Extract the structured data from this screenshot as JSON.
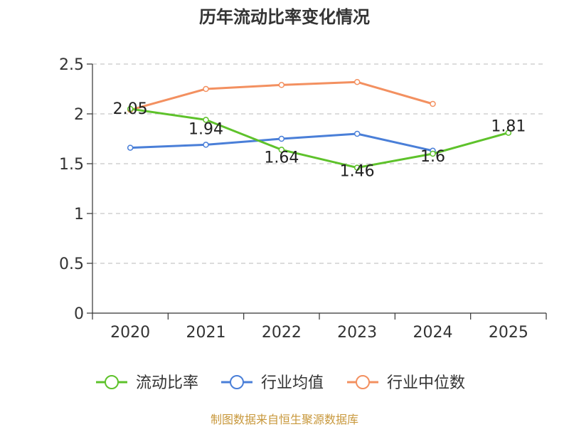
{
  "chart_data": {
    "type": "line",
    "title": "历年流动比率变化情况",
    "categories": [
      "2020",
      "2021",
      "2022",
      "2023",
      "2024",
      "2025"
    ],
    "ylim": [
      0,
      2.5
    ],
    "yticks": [
      "0",
      "0.5",
      "1",
      "1.5",
      "2",
      "2.5"
    ],
    "grid": true,
    "legend_position": "bottom",
    "series": [
      {
        "name": "流动比率",
        "color": "#5ec22b",
        "values": [
          2.05,
          1.94,
          1.64,
          1.46,
          1.6,
          1.81
        ],
        "labels": [
          "2.05",
          "1.94",
          "1.64",
          "1.46",
          "1.6",
          "1.81"
        ]
      },
      {
        "name": "行业均值",
        "color": "#4a7fd8",
        "values": [
          1.66,
          1.69,
          1.75,
          1.8,
          1.63,
          null
        ]
      },
      {
        "name": "行业中位数",
        "color": "#f39060",
        "values": [
          2.04,
          2.25,
          2.29,
          2.32,
          2.1,
          null
        ]
      }
    ],
    "source": "制图数据来自恒生聚源数据库"
  }
}
